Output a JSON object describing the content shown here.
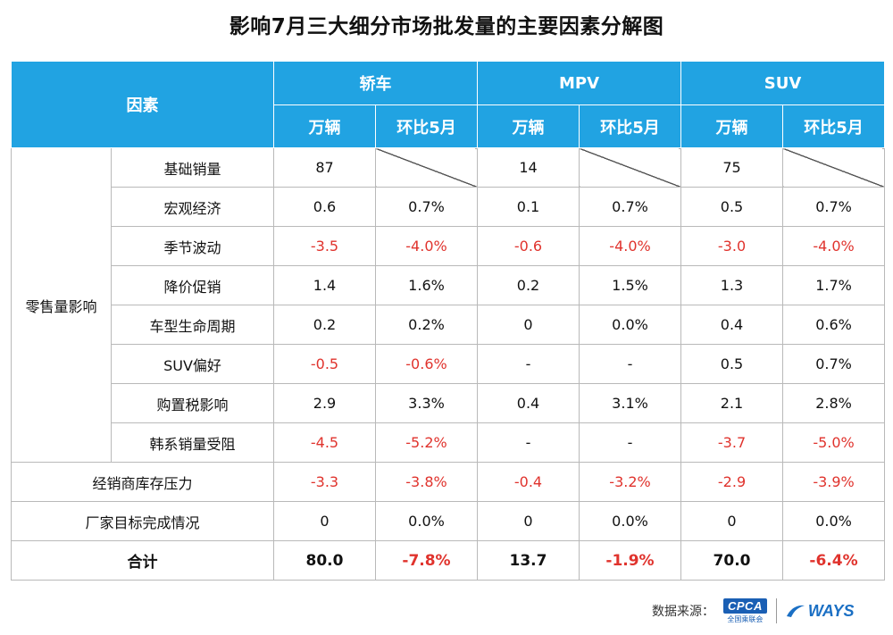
{
  "chart_data": {
    "type": "table",
    "title": "影响7月三大细分市场批发量的主要因素分解图",
    "header": {
      "factor_label": "因素",
      "segments": [
        "轿车",
        "MPV",
        "SUV"
      ],
      "sub_headers": [
        "万辆",
        "环比5月",
        "万辆",
        "环比5月",
        "万辆",
        "环比5月"
      ]
    },
    "group_label": "零售量影响",
    "rows": [
      {
        "factor": "基础销量",
        "cells": [
          "87",
          "",
          "14",
          "",
          "75",
          ""
        ]
      },
      {
        "factor": "宏观经济",
        "cells": [
          "0.6",
          "0.7%",
          "0.1",
          "0.7%",
          "0.5",
          "0.7%"
        ]
      },
      {
        "factor": "季节波动",
        "cells": [
          "-3.5",
          "-4.0%",
          "-0.6",
          "-4.0%",
          "-3.0",
          "-4.0%"
        ]
      },
      {
        "factor": "降价促销",
        "cells": [
          "1.4",
          "1.6%",
          "0.2",
          "1.5%",
          "1.3",
          "1.7%"
        ]
      },
      {
        "factor": "车型生命周期",
        "cells": [
          "0.2",
          "0.2%",
          "0",
          "0.0%",
          "0.4",
          "0.6%"
        ]
      },
      {
        "factor": "SUV偏好",
        "cells": [
          "-0.5",
          "-0.6%",
          "-",
          "-",
          "0.5",
          "0.7%"
        ]
      },
      {
        "factor": "购置税影响",
        "cells": [
          "2.9",
          "3.3%",
          "0.4",
          "3.1%",
          "2.1",
          "2.8%"
        ]
      },
      {
        "factor": "韩系销量受阻",
        "cells": [
          "-4.5",
          "-5.2%",
          "-",
          "-",
          "-3.7",
          "-5.0%"
        ]
      }
    ],
    "other_rows": [
      {
        "factor": "经销商库存压力",
        "cells": [
          "-3.3",
          "-3.8%",
          "-0.4",
          "-3.2%",
          "-2.9",
          "-3.9%"
        ]
      },
      {
        "factor": "厂家目标完成情况",
        "cells": [
          "0",
          "0.0%",
          "0",
          "0.0%",
          "0",
          "0.0%"
        ]
      }
    ],
    "total": {
      "factor": "合计",
      "cells": [
        "80.0",
        "-7.8%",
        "13.7",
        "-1.9%",
        "70.0",
        "-6.4%"
      ]
    }
  },
  "footer": {
    "source_label": "数据来源：",
    "cpca_logo": "CPCA",
    "cpca_sub": "全国乘联会",
    "ways_logo": "WAYS"
  },
  "colors": {
    "header_bg": "#21a3e2",
    "negative": "#e0332d",
    "border": "#b9b9b9"
  }
}
